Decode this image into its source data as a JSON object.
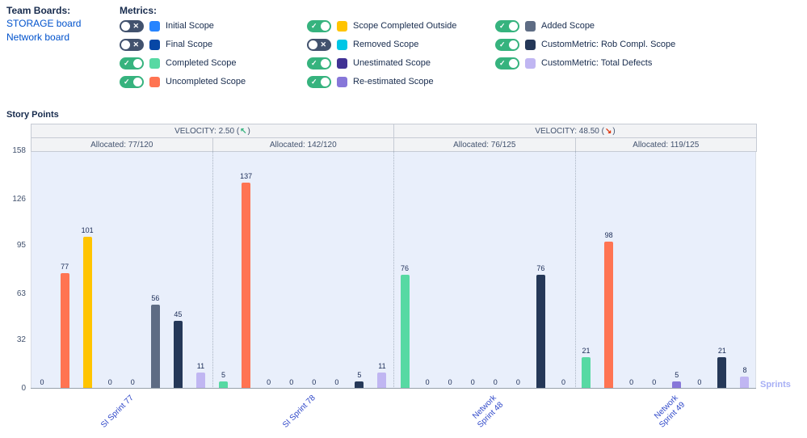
{
  "team_boards": {
    "title": "Team Boards:",
    "boards": [
      {
        "label": "STORAGE board"
      },
      {
        "label": "Network board"
      }
    ]
  },
  "metrics": {
    "title": "Metrics:",
    "toggle_on_icon": "✓",
    "toggle_off_icon": "✕",
    "toggle_on_color": "#36B37E",
    "toggle_off_color": "#42526E",
    "columns": [
      {
        "items": [
          {
            "label": "Initial Scope",
            "color": "#2684FF",
            "enabled": false
          },
          {
            "label": "Final Scope",
            "color": "#0747A6",
            "enabled": false
          },
          {
            "label": "Completed Scope",
            "color": "#57D9A3",
            "enabled": true
          },
          {
            "label": "Uncompleted Scope",
            "color": "#FF7452",
            "enabled": true
          }
        ]
      },
      {
        "items": [
          {
            "label": "Scope Completed Outside",
            "color": "#FFC400",
            "enabled": true
          },
          {
            "label": "Removed Scope",
            "color": "#00C7E6",
            "enabled": false
          },
          {
            "label": "Unestimated Scope",
            "color": "#403294",
            "enabled": true
          },
          {
            "label": "Re-estimated Scope",
            "color": "#8777D9",
            "enabled": true
          }
        ]
      },
      {
        "items": [
          {
            "label": "Added Scope",
            "color": "#5E6C84",
            "enabled": true
          },
          {
            "label": "CustomMetric: Rob Compl. Scope",
            "color": "#253858",
            "enabled": true
          },
          {
            "label": "CustomMetric: Total Defects",
            "color": "#C0B6F2",
            "enabled": true
          }
        ]
      }
    ]
  },
  "chart": {
    "ylabel": "Story Points",
    "xlabel": "Sprints",
    "velocity_headers": [
      {
        "label": "VELOCITY: 2.50",
        "trend": "up",
        "arrow": "↖",
        "arrow_color": "#36B37E"
      },
      {
        "label": "VELOCITY: 48.50",
        "trend": "down",
        "arrow": "↘",
        "arrow_color": "#DE350B"
      }
    ],
    "allocated_headers": [
      "Allocated: 77/120",
      "Allocated: 142/120",
      "Allocated: 76/125",
      "Allocated: 119/125"
    ]
  },
  "chart_data": {
    "type": "bar",
    "title": "",
    "xlabel": "Sprints",
    "ylabel": "Story Points",
    "categories": [
      "SI Sprint 77",
      "SI Sprint 78",
      "Network Sprint 48",
      "Network Sprint 49"
    ],
    "series": [
      {
        "name": "Completed Scope",
        "color": "#57D9A3",
        "values": [
          0,
          5,
          76,
          21
        ]
      },
      {
        "name": "Uncompleted Scope",
        "color": "#FF7452",
        "values": [
          77,
          137,
          0,
          98
        ]
      },
      {
        "name": "Scope Completed Outside",
        "color": "#FFC400",
        "values": [
          101,
          0,
          0,
          0
        ]
      },
      {
        "name": "Unestimated Scope",
        "color": "#403294",
        "values": [
          0,
          0,
          0,
          0
        ]
      },
      {
        "name": "Re-estimated Scope",
        "color": "#8777D9",
        "values": [
          0,
          0,
          0,
          5
        ]
      },
      {
        "name": "Added Scope",
        "color": "#5E6C84",
        "values": [
          56,
          0,
          0,
          0
        ]
      },
      {
        "name": "CustomMetric: Rob Compl. Scope",
        "color": "#253858",
        "values": [
          45,
          5,
          76,
          21
        ]
      },
      {
        "name": "CustomMetric: Total Defects",
        "color": "#C0B6F2",
        "values": [
          11,
          11,
          0,
          8
        ]
      }
    ],
    "yticks": [
      0,
      32,
      63,
      95,
      126,
      158
    ],
    "ylim": [
      0,
      158
    ],
    "grid": false,
    "legend_position": "top",
    "plot_background": "#E9EFFB"
  }
}
